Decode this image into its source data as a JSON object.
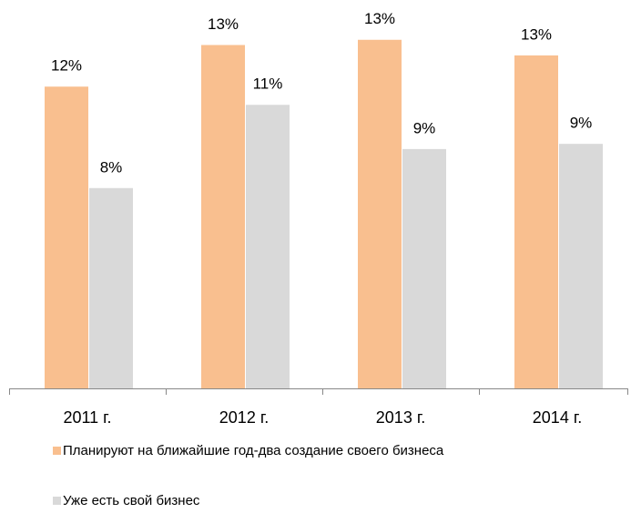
{
  "chart_data": {
    "type": "bar",
    "categories": [
      "2011 г.",
      "2012 г.",
      "2013 г.",
      "2014 г."
    ],
    "series": [
      {
        "name": "Планируют на ближайшие год-два создание своего бизнеса",
        "color": "#f9bf8f",
        "values": [
          11.6,
          13.2,
          13.4,
          12.8
        ],
        "value_labels": [
          "12%",
          "13%",
          "13%",
          "13%"
        ]
      },
      {
        "name": "Уже есть свой бизнес",
        "color": "#d9d9d9",
        "values": [
          7.7,
          10.9,
          9.2,
          9.4
        ],
        "value_labels": [
          "8%",
          "11%",
          "9%",
          "9%"
        ]
      }
    ],
    "ylim": [
      0,
      15
    ]
  }
}
